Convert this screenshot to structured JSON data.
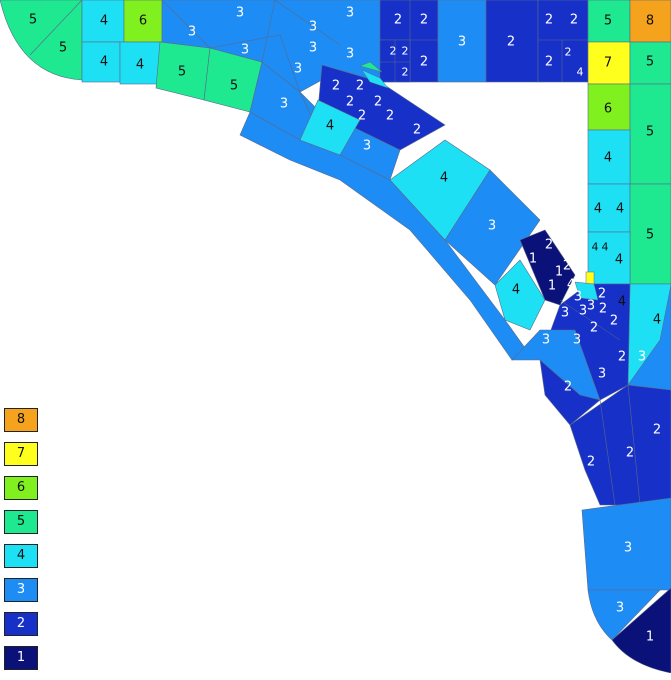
{
  "legend": [
    {
      "level": "8",
      "color": "#F5A21C"
    },
    {
      "level": "7",
      "color": "#FFFF1E"
    },
    {
      "level": "6",
      "color": "#80F01E"
    },
    {
      "level": "5",
      "color": "#1EE890"
    },
    {
      "level": "4",
      "color": "#1EE0F5"
    },
    {
      "level": "3",
      "color": "#1E8CF5"
    },
    {
      "level": "2",
      "color": "#1630C8"
    },
    {
      "level": "1",
      "color": "#0A127A"
    }
  ],
  "labels": {
    "ta": "5",
    "tb": "5",
    "tc": "4",
    "td": "6",
    "te": "4",
    "tf": "4",
    "tg": "5",
    "th": "5",
    "ti": "3",
    "tj": "3",
    "tk": "3",
    "tl": "3",
    "tm": "3",
    "tn": "3",
    "to": "3",
    "tp": "3",
    "tq": "3",
    "tr": "2",
    "ts": "2",
    "tt": "2",
    "tu": "2",
    "tv": "2",
    "tw": "2",
    "tx": "3",
    "ty": "2",
    "tz": "2",
    "ua": "2",
    "ub": "2",
    "uc": "2",
    "ud": "4",
    "ue": "5",
    "uf": "8",
    "ug": "7",
    "uh": "5",
    "ui": "2",
    "uj": "2",
    "uk": "2",
    "ul": "2",
    "um": "2",
    "un": "2",
    "uo": "2",
    "up": "4",
    "uq": "4",
    "ur": "3",
    "us": "4",
    "ut": "3",
    "uu": "6",
    "uv": "5",
    "uw": "4",
    "ux": "4",
    "uy": "4",
    "uz": "5",
    "va": "4",
    "vb": "4",
    "vc": "4",
    "vd": "1",
    "ve": "2",
    "vf": "1",
    "vg": "2",
    "vh": "1",
    "vi": "4",
    "vj": "3",
    "vk": "3",
    "vl": "3",
    "vm": "3",
    "vn": "2",
    "vo": "2",
    "vp": "2",
    "vq": "2",
    "vr": "4",
    "vs": "4",
    "vt": "3",
    "vu": "3",
    "vv": "3",
    "vw": "2",
    "vx": "3",
    "vy": "2",
    "vz": "2",
    "wa": "2",
    "wb": "2",
    "wc": "3",
    "wd": "3",
    "we": "1"
  }
}
